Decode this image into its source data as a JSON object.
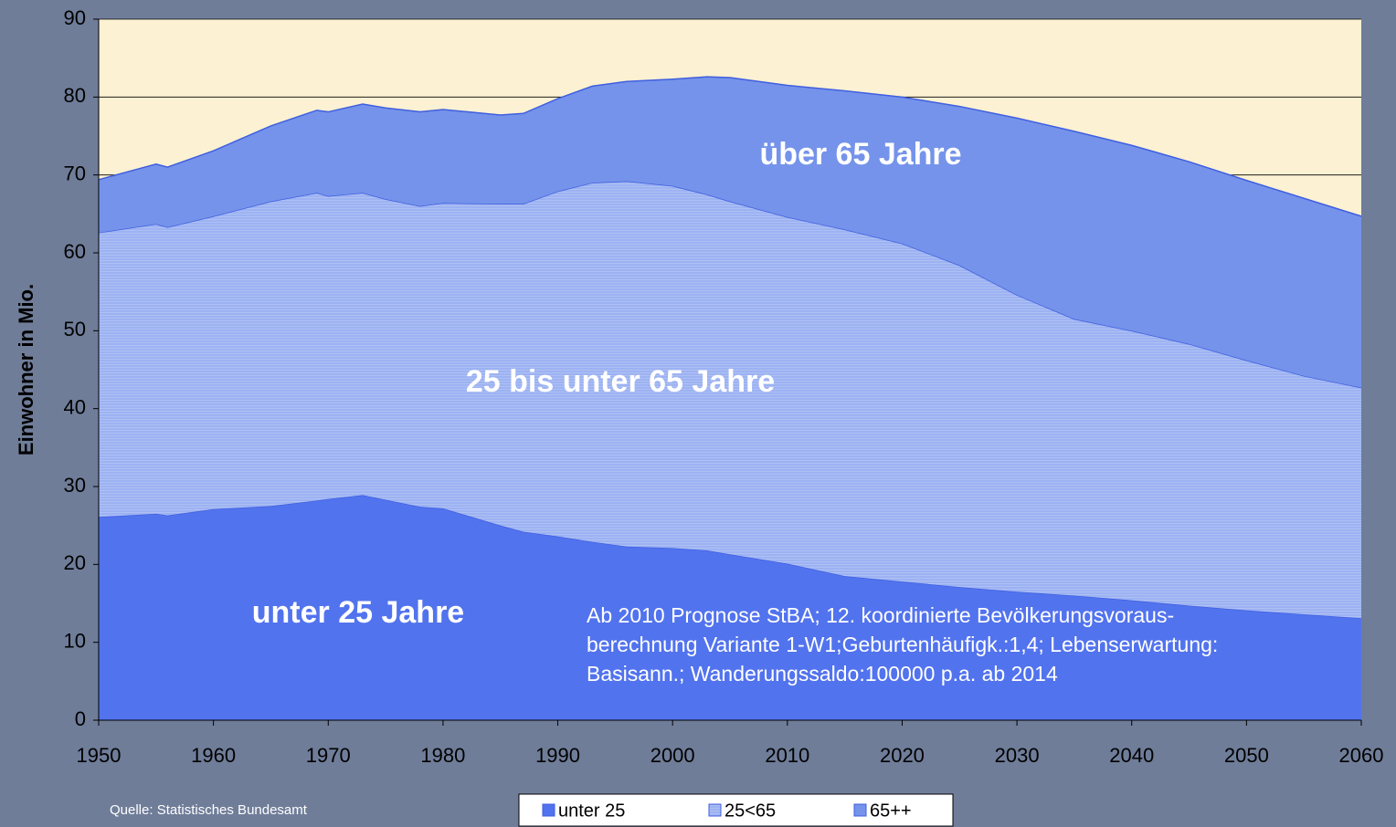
{
  "chart_data": {
    "type": "stacked-area",
    "y_label": "Einwohner in Mio.",
    "source": "Quelle: Statistisches Bundesamt",
    "x": [
      1950,
      1955,
      1956,
      1960,
      1965,
      1969,
      1970,
      1973,
      1975,
      1978,
      1980,
      1985,
      1987,
      1990,
      1993,
      1996,
      2000,
      2003,
      2005,
      2010,
      2015,
      2020,
      2025,
      2030,
      2035,
      2040,
      2045,
      2050,
      2055,
      2060
    ],
    "series": [
      {
        "name": "unter 25",
        "color": "#5273ee",
        "values": [
          26.1,
          26.5,
          26.3,
          27.1,
          27.5,
          28.2,
          28.4,
          28.9,
          28.3,
          27.4,
          27.2,
          25.0,
          24.2,
          23.6,
          22.9,
          22.3,
          22.1,
          21.8,
          21.3,
          20.1,
          18.5,
          17.8,
          17.1,
          16.5,
          16.0,
          15.4,
          14.7,
          14.1,
          13.6,
          13.1
        ]
      },
      {
        "name": "25<65",
        "color": "#9cb2f2",
        "values": [
          36.5,
          37.2,
          37.0,
          37.6,
          39.1,
          39.5,
          38.9,
          38.8,
          38.6,
          38.6,
          39.2,
          41.3,
          42.1,
          44.3,
          46.1,
          46.9,
          46.5,
          45.7,
          45.3,
          44.5,
          44.5,
          43.4,
          41.3,
          38.1,
          35.5,
          34.6,
          33.6,
          32.1,
          30.6,
          29.6
        ]
      },
      {
        "name": "65++",
        "color": "#7593ea",
        "values": [
          6.8,
          7.7,
          7.7,
          8.4,
          9.7,
          10.6,
          10.8,
          11.4,
          11.7,
          12.1,
          12.0,
          11.4,
          11.6,
          11.9,
          12.4,
          12.8,
          13.7,
          15.1,
          15.9,
          16.9,
          17.8,
          18.8,
          20.4,
          22.7,
          24.1,
          23.8,
          23.4,
          23.1,
          22.8,
          22.0
        ]
      }
    ],
    "area_labels": [
      "unter 25 Jahre",
      "25 bis unter 65 Jahre",
      "über 65 Jahre"
    ],
    "annotation": [
      "Ab 2010 Prognose StBA; 12. koordinierte Bevölkerungsvoraus-",
      "berechnung Variante 1-W1;Geburtenhäufigk.:1,4; Lebenserwartung:",
      "Basisann.; Wanderungssaldo:100000 p.a. ab 2014"
    ],
    "xlim": [
      1950,
      2060
    ],
    "xticks": [
      1950,
      1960,
      1970,
      1980,
      1990,
      2000,
      2010,
      2020,
      2030,
      2040,
      2050,
      2060
    ],
    "ylim": [
      0,
      90
    ],
    "yticks": [
      0,
      10,
      20,
      30,
      40,
      50,
      60,
      70,
      80,
      90
    ],
    "grid": true,
    "plot_background": "#fcf1d2"
  }
}
